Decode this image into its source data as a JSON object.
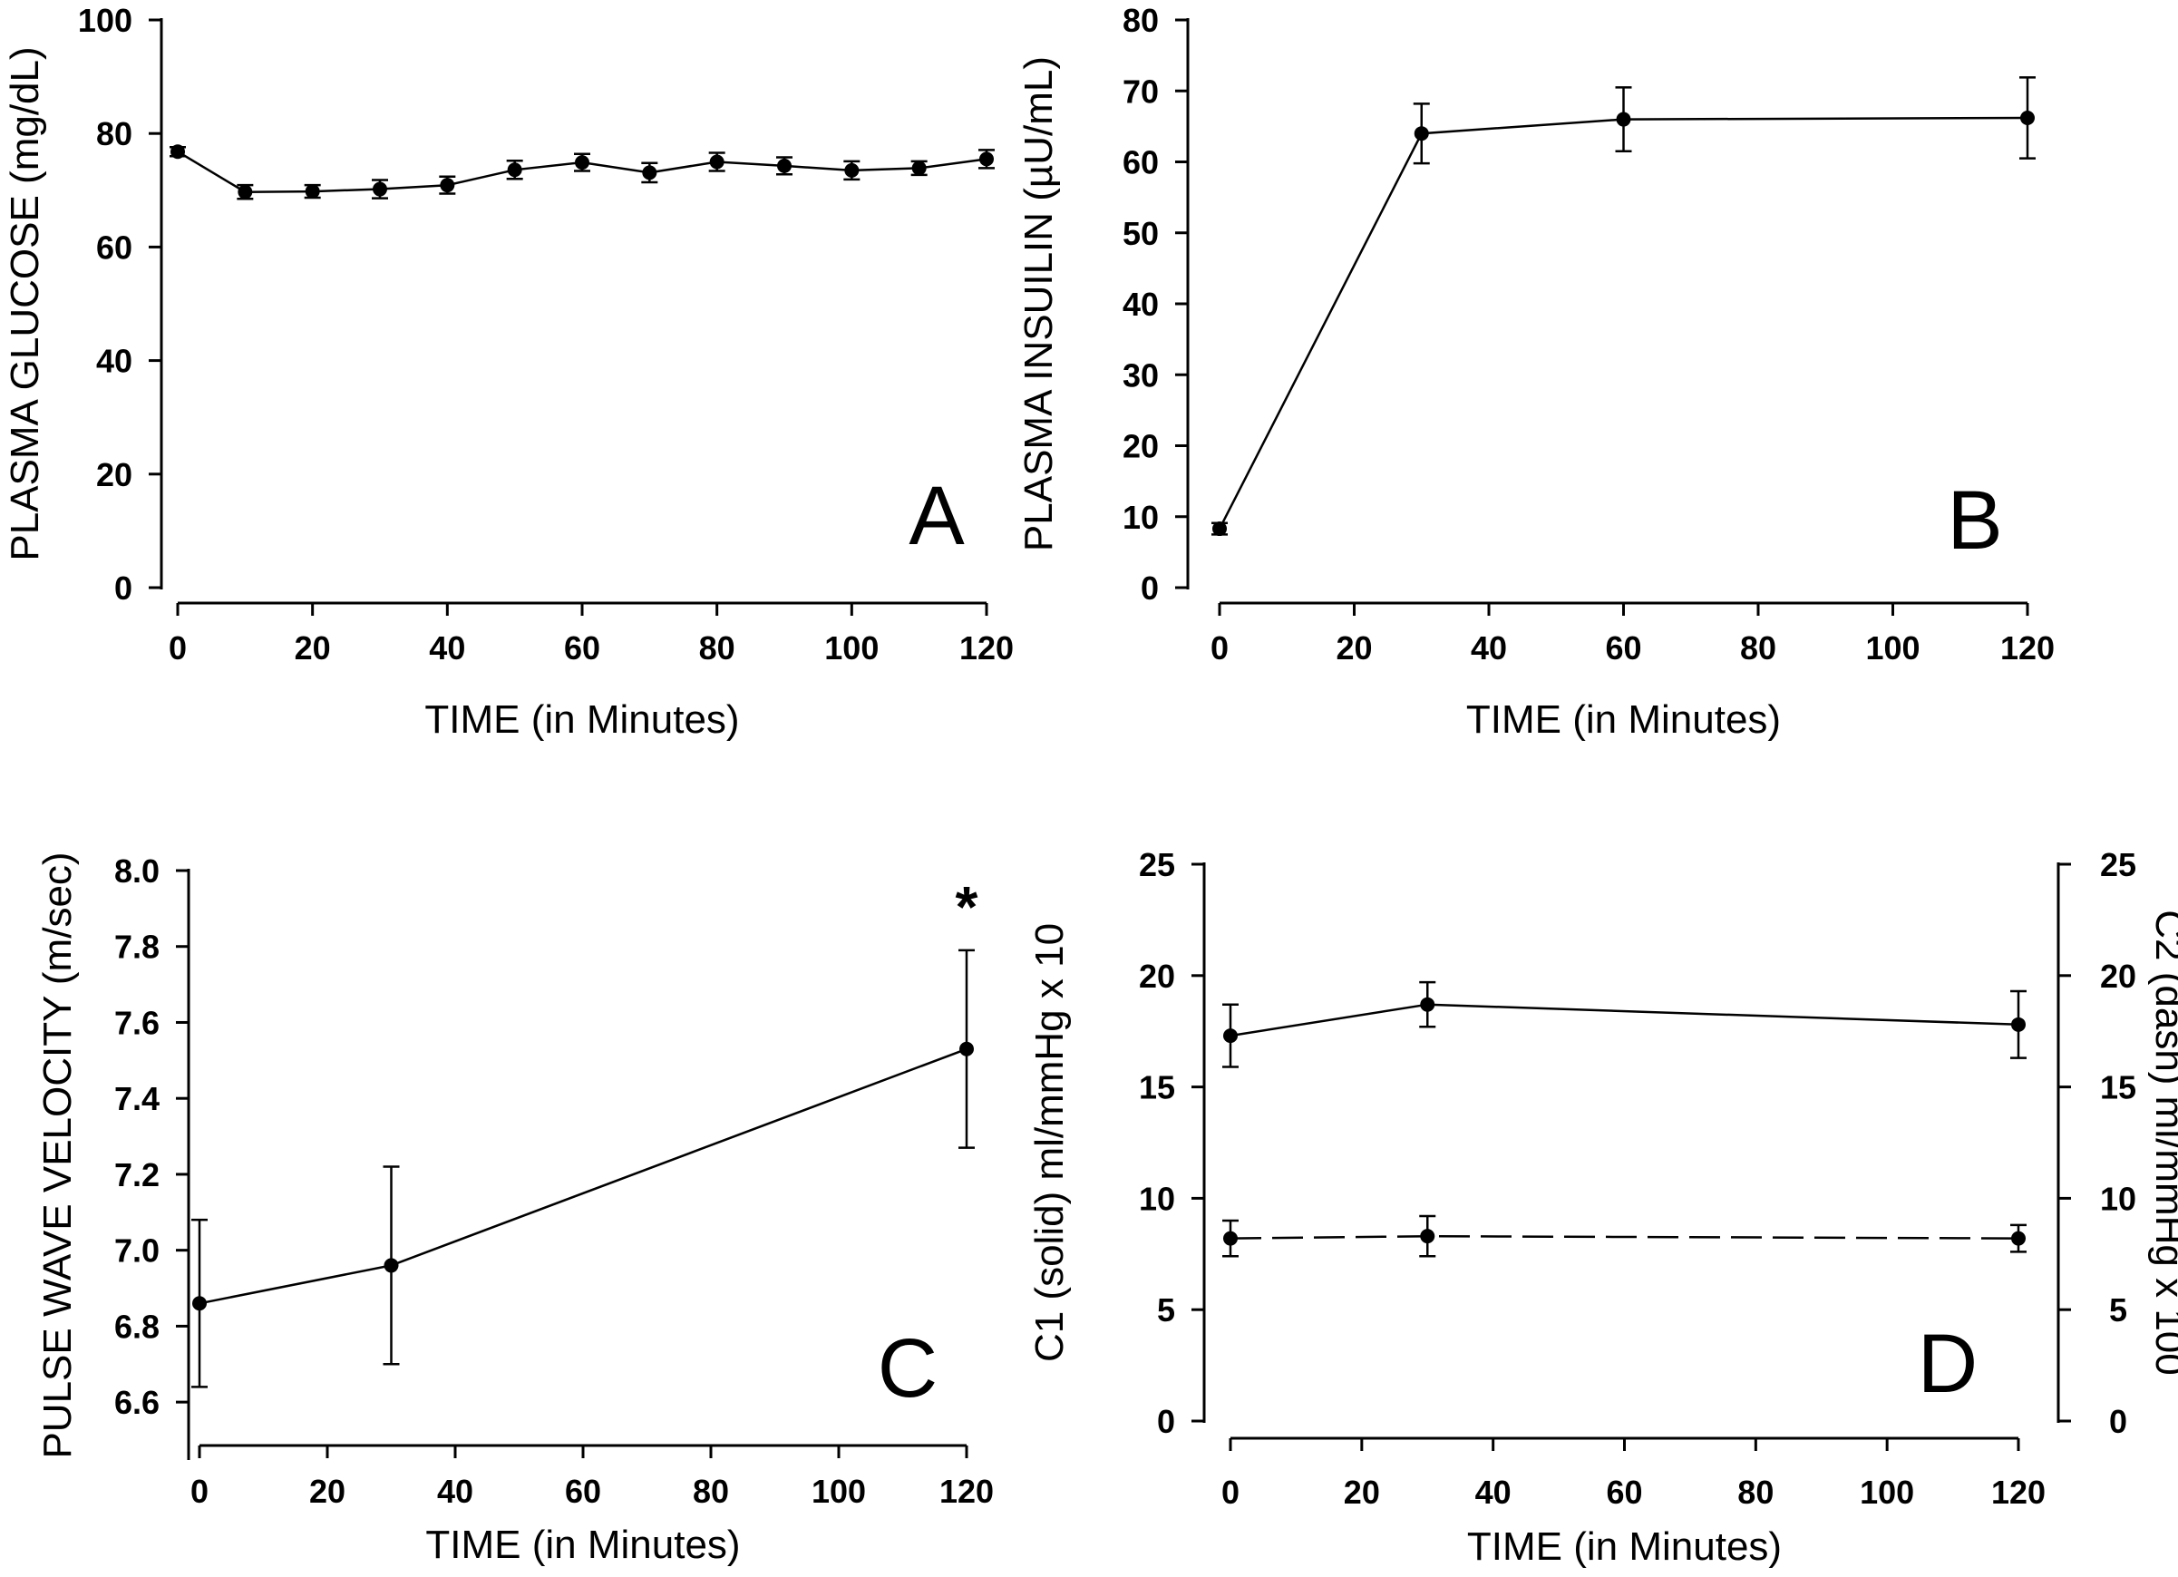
{
  "chart_data": [
    {
      "panel": "A",
      "type": "line",
      "xlabel": "TIME (in Minutes)",
      "ylabel": "PLASMA GLUCOSE (mg/dL)",
      "xlim": [
        0,
        120
      ],
      "ylim": [
        0,
        100
      ],
      "x_ticks": [
        "0",
        "20",
        "40",
        "60",
        "80",
        "100",
        "120"
      ],
      "y_ticks": [
        "0",
        "20",
        "40",
        "60",
        "80",
        "100"
      ],
      "series": [
        {
          "line_style": "solid",
          "x": [
            0,
            10,
            20,
            30,
            40,
            50,
            60,
            70,
            80,
            90,
            100,
            110,
            120
          ],
          "values": [
            76.8,
            69.7,
            69.8,
            70.2,
            70.9,
            73.6,
            74.9,
            73.1,
            75.0,
            74.3,
            73.5,
            73.9,
            75.5
          ],
          "error": [
            0.8,
            1.2,
            1.1,
            1.6,
            1.5,
            1.6,
            1.5,
            1.7,
            1.6,
            1.5,
            1.6,
            1.2,
            1.6
          ]
        }
      ],
      "annotations": []
    },
    {
      "panel": "B",
      "type": "line",
      "xlabel": "TIME (in Minutes)",
      "ylabel": "PLASMA INSUILIN (µU/mL)",
      "xlim": [
        0,
        120
      ],
      "ylim": [
        0,
        80
      ],
      "x_ticks": [
        "0",
        "20",
        "40",
        "60",
        "80",
        "100",
        "120"
      ],
      "y_ticks": [
        "0",
        "10",
        "20",
        "30",
        "40",
        "50",
        "60",
        "70",
        "80"
      ],
      "series": [
        {
          "line_style": "solid",
          "x": [
            0,
            30,
            60,
            120
          ],
          "values": [
            8.3,
            64.0,
            66.0,
            66.2
          ],
          "error": [
            0.8,
            4.2,
            4.5,
            5.7
          ]
        }
      ],
      "annotations": []
    },
    {
      "panel": "C",
      "type": "line",
      "xlabel": "TIME (in Minutes)",
      "ylabel": "PULSE WAVE VELOCITY (m/sec)",
      "xlim": [
        0,
        120
      ],
      "ylim": [
        6.5,
        8.0
      ],
      "x_ticks": [
        "0",
        "20",
        "40",
        "60",
        "80",
        "100",
        "120"
      ],
      "y_ticks": [
        "6.6",
        "6.8",
        "7.0",
        "7.2",
        "7.4",
        "7.6",
        "7.8",
        "8.0"
      ],
      "series": [
        {
          "line_style": "solid",
          "x": [
            0,
            30,
            120
          ],
          "values": [
            6.86,
            6.96,
            7.53
          ],
          "error": [
            0.22,
            0.26,
            0.26
          ]
        }
      ],
      "annotations": [
        {
          "text": "*",
          "x": 120
        }
      ]
    },
    {
      "panel": "D",
      "type": "line",
      "xlabel": "TIME (in Minutes)",
      "ylabel": "C1 (solid) ml/mmHg x 10",
      "ylabel_right": "C2 (dash) ml/mmHg x 100",
      "xlim": [
        0,
        120
      ],
      "ylim": [
        0,
        25
      ],
      "ylim_right": [
        0,
        25
      ],
      "x_ticks": [
        "0",
        "20",
        "40",
        "60",
        "80",
        "100",
        "120"
      ],
      "y_ticks": [
        "0",
        "5",
        "10",
        "15",
        "20",
        "25"
      ],
      "series": [
        {
          "line_style": "solid",
          "axis": "left",
          "x": [
            0,
            30,
            120
          ],
          "values": [
            17.3,
            18.7,
            17.8
          ],
          "error": [
            1.4,
            1.0,
            1.5
          ]
        },
        {
          "line_style": "dashed",
          "axis": "right",
          "x": [
            0,
            30,
            120
          ],
          "values": [
            8.2,
            8.3,
            8.2
          ],
          "error": [
            0.8,
            0.9,
            0.6
          ]
        }
      ],
      "annotations": []
    }
  ]
}
